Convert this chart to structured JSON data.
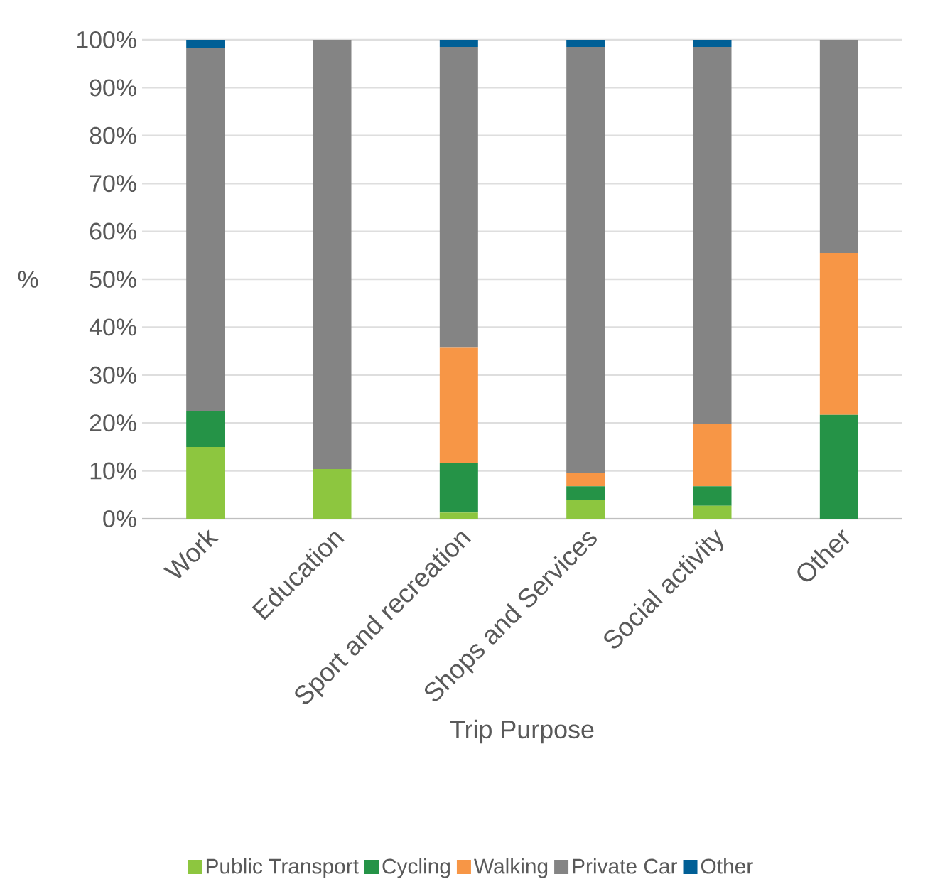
{
  "chart_data": {
    "type": "bar",
    "stacked": true,
    "xlabel": "Trip Purpose",
    "ylabel": "%",
    "categories": [
      "Work",
      "Education",
      "Sport and recreation",
      "Shops and Services",
      "Social activity",
      "Other"
    ],
    "series": [
      {
        "name": "Public Transport",
        "color": "#8dc63f",
        "values": [
          15.0,
          10.4,
          1.3,
          4.0,
          2.7,
          0
        ]
      },
      {
        "name": "Cycling",
        "color": "#259347",
        "values": [
          7.5,
          0,
          10.3,
          2.8,
          4.1,
          21.7
        ]
      },
      {
        "name": "Walking",
        "color": "#f79646",
        "values": [
          0,
          0,
          24.1,
          2.8,
          13.0,
          33.8
        ]
      },
      {
        "name": "Private Car",
        "color": "#848484",
        "values": [
          75.8,
          89.6,
          62.8,
          88.9,
          78.7,
          44.5
        ]
      },
      {
        "name": "Other",
        "color": "#005f96",
        "values": [
          1.7,
          0,
          1.5,
          1.5,
          1.5,
          0
        ]
      }
    ],
    "ylim": [
      0,
      100
    ],
    "yticks": [
      {
        "value": 0,
        "label": "0%"
      },
      {
        "value": 10,
        "label": "10%"
      },
      {
        "value": 20,
        "label": "20%"
      },
      {
        "value": 30,
        "label": "30%"
      },
      {
        "value": 40,
        "label": "40%"
      },
      {
        "value": 50,
        "label": "50%"
      },
      {
        "value": 60,
        "label": "60%"
      },
      {
        "value": 70,
        "label": "70%"
      },
      {
        "value": 80,
        "label": "80%"
      },
      {
        "value": 90,
        "label": "90%"
      },
      {
        "value": 100,
        "label": "100%"
      }
    ],
    "grid": "y",
    "legend": "bottom"
  }
}
